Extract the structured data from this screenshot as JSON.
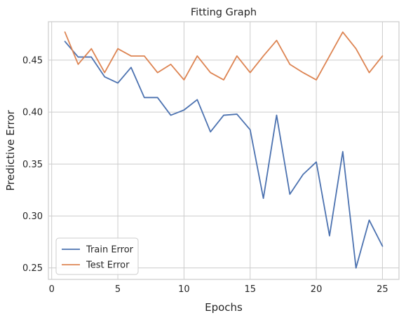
{
  "chart_data": {
    "type": "line",
    "title": "Fitting Graph",
    "xlabel": "Epochs",
    "ylabel": "Predictive Error",
    "xlim": [
      -0.25,
      26.25
    ],
    "ylim": [
      0.239,
      0.487
    ],
    "xticks": [
      0,
      5,
      10,
      15,
      20,
      25
    ],
    "yticks": [
      0.25,
      0.3,
      0.35,
      0.4,
      0.45
    ],
    "ytick_labels": [
      "0.25",
      "0.30",
      "0.35",
      "0.40",
      "0.45"
    ],
    "grid": true,
    "legend_position": "lower-left",
    "x": [
      1,
      2,
      3,
      4,
      5,
      6,
      7,
      8,
      9,
      10,
      11,
      12,
      13,
      14,
      15,
      16,
      17,
      18,
      19,
      20,
      21,
      22,
      23,
      24,
      25
    ],
    "series": [
      {
        "name": "Train Error",
        "color": "#4c72b0",
        "values": [
          0.468,
          0.453,
          0.453,
          0.434,
          0.428,
          0.443,
          0.414,
          0.414,
          0.397,
          0.402,
          0.412,
          0.381,
          0.397,
          0.398,
          0.383,
          0.317,
          0.397,
          0.321,
          0.34,
          0.352,
          0.281,
          0.362,
          0.25,
          0.296,
          0.271
        ]
      },
      {
        "name": "Test Error",
        "color": "#dd8452",
        "values": [
          0.477,
          0.446,
          0.461,
          0.438,
          0.461,
          0.454,
          0.454,
          0.438,
          0.446,
          0.431,
          0.454,
          0.438,
          0.431,
          0.454,
          0.438,
          0.454,
          0.469,
          0.446,
          0.438,
          0.431,
          0.454,
          0.477,
          0.461,
          0.438,
          0.454
        ]
      }
    ]
  }
}
